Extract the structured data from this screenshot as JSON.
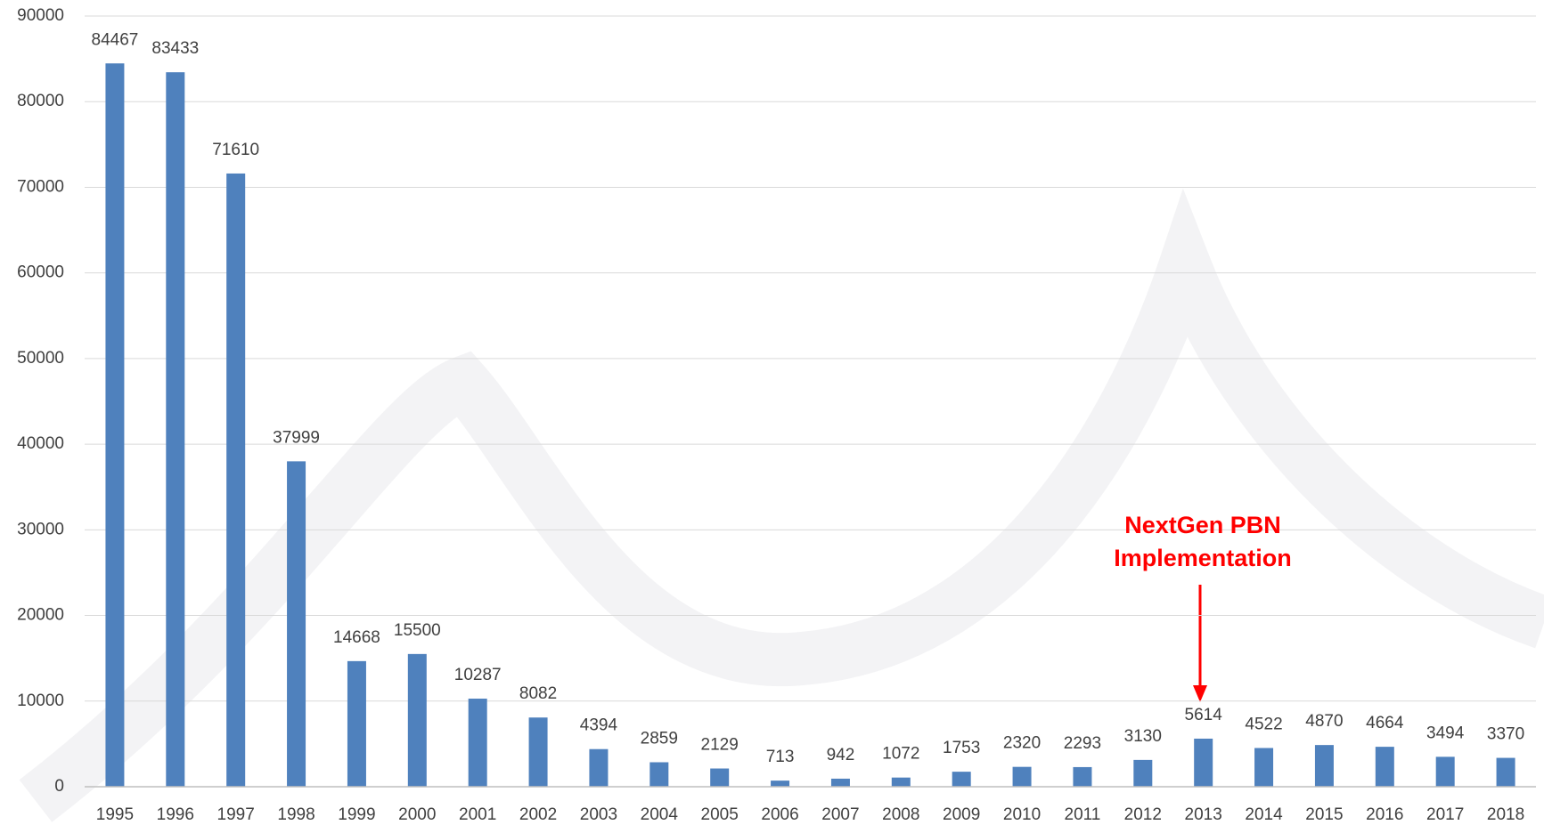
{
  "chart_data": {
    "type": "bar",
    "categories": [
      "1995",
      "1996",
      "1997",
      "1998",
      "1999",
      "2000",
      "2001",
      "2002",
      "2003",
      "2004",
      "2005",
      "2006",
      "2007",
      "2008",
      "2009",
      "2010",
      "2011",
      "2012",
      "2013",
      "2014",
      "2015",
      "2016",
      "2017",
      "2018"
    ],
    "values": [
      84467,
      83433,
      71610,
      37999,
      14668,
      15500,
      10287,
      8082,
      4394,
      2859,
      2129,
      713,
      942,
      1072,
      1753,
      2320,
      2293,
      3130,
      5614,
      4522,
      4870,
      4664,
      3494,
      3370
    ],
    "color": "#4f81bd",
    "ylim": [
      0,
      90000
    ],
    "yticks": [
      0,
      10000,
      20000,
      30000,
      40000,
      50000,
      60000,
      70000,
      80000,
      90000
    ],
    "grid": true,
    "annotation": "NextGen PBN Implementation"
  }
}
